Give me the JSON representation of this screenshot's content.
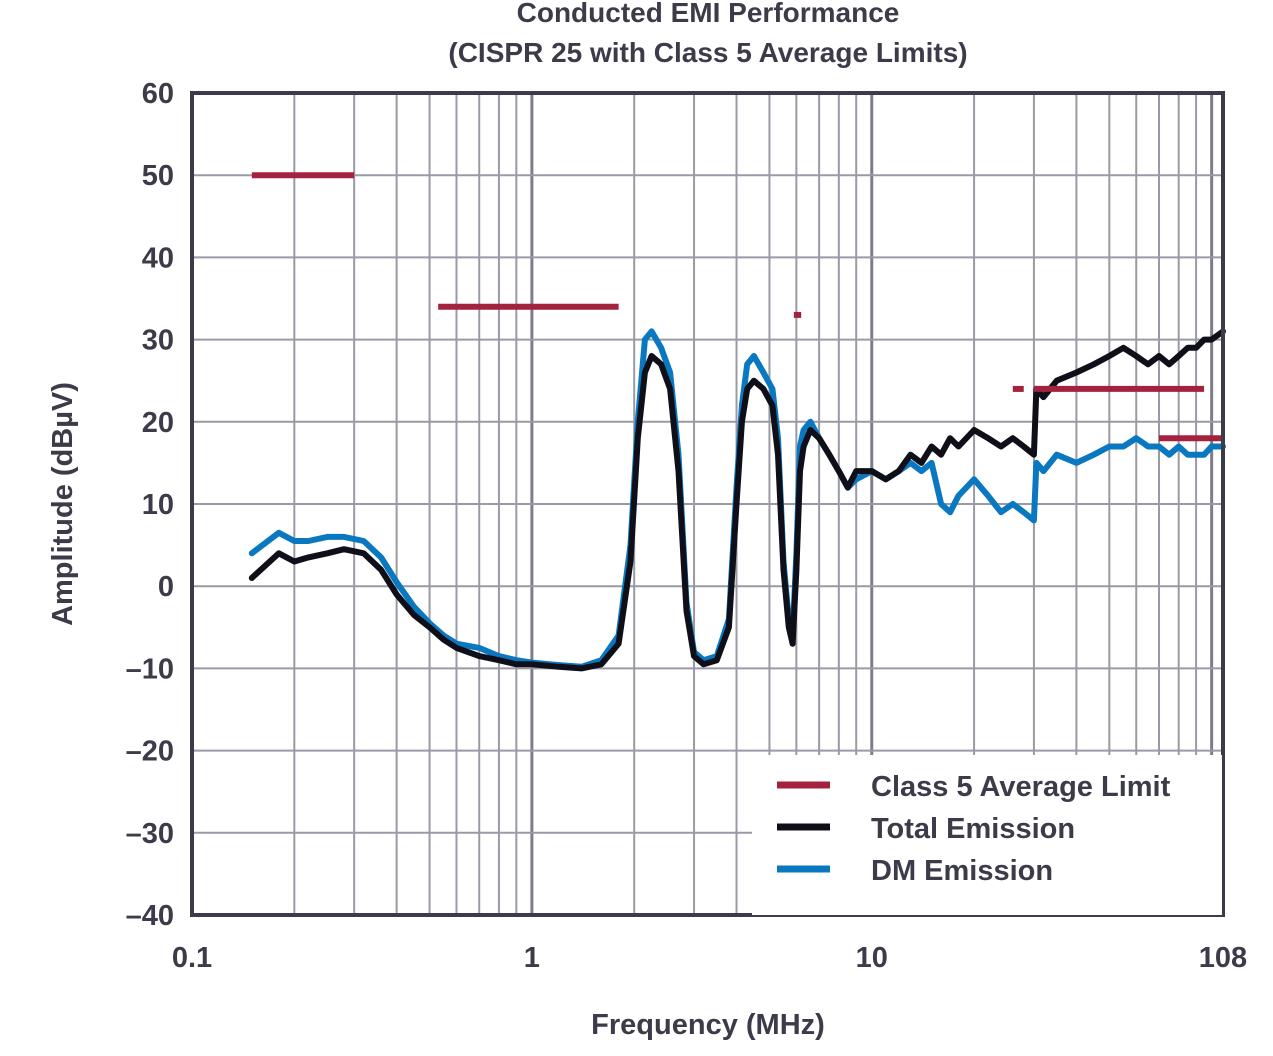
{
  "chart_data": {
    "type": "line",
    "title": "Conducted EMI Performance",
    "subtitle": "(CISPR 25 with Class 5 Average Limits)",
    "xlabel": "Frequency (MHz)",
    "ylabel": "Amplitude (dBµV)",
    "x_scale": "log",
    "xlim": [
      0.1,
      108
    ],
    "ylim": [
      -40,
      60
    ],
    "grid": true,
    "x_tick_labels": [
      {
        "value": 0.1,
        "label": "0.1"
      },
      {
        "value": 1,
        "label": "1"
      },
      {
        "value": 10,
        "label": "10"
      },
      {
        "value": 108,
        "label": "108"
      }
    ],
    "y_tick_labels": [
      {
        "value": 60,
        "label": "60"
      },
      {
        "value": 50,
        "label": "50"
      },
      {
        "value": 40,
        "label": "40"
      },
      {
        "value": 30,
        "label": "30"
      },
      {
        "value": 20,
        "label": "20"
      },
      {
        "value": 10,
        "label": "10"
      },
      {
        "value": 0,
        "label": "0"
      },
      {
        "value": -10,
        "label": "–10"
      },
      {
        "value": -20,
        "label": "–20"
      },
      {
        "value": -30,
        "label": "–30"
      },
      {
        "value": -40,
        "label": "–40"
      }
    ],
    "legend_position": "bottom-right",
    "series": [
      {
        "name": "Class 5 Average Limit",
        "color": "#a3233f",
        "kind": "segments",
        "segments": [
          {
            "x": [
              0.15,
              0.3
            ],
            "y": 50
          },
          {
            "x": [
              0.53,
              1.8
            ],
            "y": 34
          },
          {
            "x": [
              5.9,
              6.2
            ],
            "y": 33
          },
          {
            "x": [
              26,
              28
            ],
            "y": 24
          },
          {
            "x": [
              30,
              95
            ],
            "y": 24
          },
          {
            "x": [
              70,
              108
            ],
            "y": 18
          }
        ]
      },
      {
        "name": "Total Emission",
        "color": "#0f0f19",
        "kind": "line",
        "x": [
          0.15,
          0.18,
          0.2,
          0.22,
          0.25,
          0.28,
          0.32,
          0.36,
          0.4,
          0.45,
          0.5,
          0.55,
          0.6,
          0.7,
          0.8,
          0.9,
          1.0,
          1.2,
          1.4,
          1.6,
          1.8,
          1.95,
          2.05,
          2.15,
          2.25,
          2.4,
          2.55,
          2.7,
          2.85,
          3.0,
          3.2,
          3.5,
          3.8,
          4.0,
          4.15,
          4.3,
          4.5,
          4.8,
          5.1,
          5.3,
          5.5,
          5.7,
          5.85,
          6.0,
          6.15,
          6.3,
          6.6,
          7.0,
          7.5,
          8.0,
          8.5,
          9.0,
          10,
          11,
          12,
          13,
          14,
          15,
          16,
          17,
          18,
          20,
          22,
          24,
          26,
          28,
          30,
          30.5,
          32,
          35,
          40,
          45,
          50,
          55,
          60,
          65,
          70,
          75,
          80,
          85,
          90,
          95,
          100,
          108
        ],
        "y": [
          1,
          4,
          3,
          3.5,
          4,
          4.5,
          4,
          2,
          -1,
          -3.5,
          -5,
          -6.5,
          -7.5,
          -8.5,
          -9,
          -9.5,
          -9.5,
          -9.8,
          -10,
          -9.5,
          -7,
          3,
          18,
          26,
          28,
          27,
          24,
          14,
          -3,
          -8.5,
          -9.5,
          -9,
          -5,
          10,
          20,
          24,
          25,
          24,
          22,
          16,
          2,
          -5,
          -7,
          2,
          14,
          17,
          19,
          18,
          16,
          14,
          12,
          14,
          14,
          13,
          14,
          16,
          15,
          17,
          16,
          18,
          17,
          19,
          18,
          17,
          18,
          17,
          16,
          24,
          23,
          25,
          26,
          27,
          28,
          29,
          28,
          27,
          28,
          27,
          28,
          29,
          29,
          30,
          30,
          31
        ]
      },
      {
        "name": "DM Emission",
        "color": "#0a78c0",
        "kind": "line",
        "x": [
          0.15,
          0.18,
          0.2,
          0.22,
          0.25,
          0.28,
          0.32,
          0.36,
          0.4,
          0.45,
          0.5,
          0.55,
          0.6,
          0.7,
          0.8,
          0.9,
          1.0,
          1.2,
          1.4,
          1.6,
          1.8,
          1.95,
          2.05,
          2.15,
          2.25,
          2.4,
          2.55,
          2.7,
          2.85,
          3.0,
          3.2,
          3.5,
          3.8,
          4.0,
          4.15,
          4.3,
          4.5,
          4.8,
          5.1,
          5.3,
          5.5,
          5.7,
          5.85,
          6.0,
          6.15,
          6.3,
          6.6,
          7.0,
          7.5,
          8.0,
          8.5,
          9.0,
          10,
          11,
          12,
          13,
          14,
          15,
          16,
          17,
          18,
          20,
          22,
          24,
          26,
          28,
          30,
          30.5,
          32,
          35,
          40,
          45,
          50,
          55,
          60,
          65,
          70,
          75,
          80,
          85,
          90,
          95,
          100,
          108
        ],
        "y": [
          4,
          6.5,
          5.5,
          5.5,
          6,
          6,
          5.5,
          3.5,
          0.5,
          -2.5,
          -4.5,
          -6,
          -7,
          -7.5,
          -8.5,
          -9,
          -9.3,
          -9.6,
          -9.8,
          -9,
          -6,
          5,
          20,
          30,
          31,
          29,
          26,
          16,
          -2,
          -8,
          -9,
          -8.5,
          -4,
          12,
          22,
          27,
          28,
          26,
          24,
          18,
          3,
          -4,
          -6,
          4,
          17,
          19,
          20,
          18,
          16,
          14,
          12,
          13,
          14,
          13,
          14,
          15,
          14,
          15,
          10,
          9,
          11,
          13,
          11,
          9,
          10,
          9,
          8,
          15,
          14,
          16,
          15,
          16,
          17,
          17,
          18,
          17,
          17,
          16,
          17,
          16,
          16,
          16,
          17,
          17
        ]
      }
    ]
  }
}
